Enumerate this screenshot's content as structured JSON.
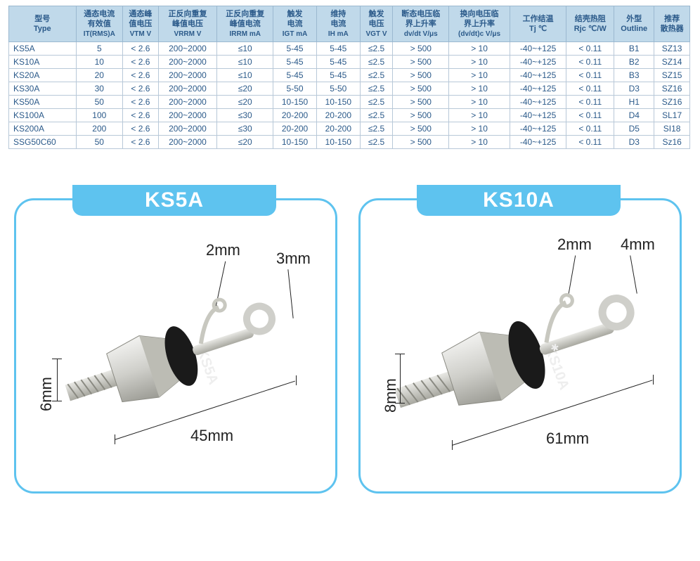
{
  "table": {
    "header_bg": "#c0d9ea",
    "header_fg": "#2b5a8a",
    "border_color": "#9bb8d0",
    "cell_fg": "#2b5a8a",
    "columns": [
      {
        "cn": "型号",
        "en": "Type",
        "sub": ""
      },
      {
        "cn": "通态电流",
        "en": "有效值",
        "sub": "IT(RMS)A"
      },
      {
        "cn": "通态峰",
        "en": "值电压",
        "sub": "VTM V"
      },
      {
        "cn": "正反向重复",
        "en": "峰值电压",
        "sub": "VRRM V"
      },
      {
        "cn": "正反向重复",
        "en": "峰值电流",
        "sub": "IRRM mA"
      },
      {
        "cn": "触发",
        "en": "电流",
        "sub": "IGT mA"
      },
      {
        "cn": "维持",
        "en": "电流",
        "sub": "IH mA"
      },
      {
        "cn": "触发",
        "en": "电压",
        "sub": "VGT V"
      },
      {
        "cn": "断态电压临",
        "en": "界上升率",
        "sub": "dv/dt V/μs"
      },
      {
        "cn": "换向电压临",
        "en": "界上升率",
        "sub": "(dv/dt)c V/μs"
      },
      {
        "cn": "工作结温",
        "en": "Tj ℃",
        "sub": ""
      },
      {
        "cn": "结壳热阻",
        "en": "Rjc ℃/W",
        "sub": ""
      },
      {
        "cn": "外型",
        "en": "Outline",
        "sub": ""
      },
      {
        "cn": "推荐",
        "en": "散热器",
        "sub": ""
      }
    ],
    "rows": [
      [
        "KS5A",
        "5",
        "< 2.6",
        "200~2000",
        "≤10",
        "5-45",
        "5-45",
        "≤2.5",
        "> 500",
        "> 10",
        "-40~+125",
        "< 0.11",
        "B1",
        "SZ13"
      ],
      [
        "KS10A",
        "10",
        "< 2.6",
        "200~2000",
        "≤10",
        "5-45",
        "5-45",
        "≤2.5",
        "> 500",
        "> 10",
        "-40~+125",
        "< 0.11",
        "B2",
        "SZ14"
      ],
      [
        "KS20A",
        "20",
        "< 2.6",
        "200~2000",
        "≤10",
        "5-45",
        "5-45",
        "≤2.5",
        "> 500",
        "> 10",
        "-40~+125",
        "< 0.11",
        "B3",
        "SZ15"
      ],
      [
        "KS30A",
        "30",
        "< 2.6",
        "200~2000",
        "≤20",
        "5-50",
        "5-50",
        "≤2.5",
        "> 500",
        "> 10",
        "-40~+125",
        "< 0.11",
        "D3",
        "SZ16"
      ],
      [
        "KS50A",
        "50",
        "< 2.6",
        "200~2000",
        "≤20",
        "10-150",
        "10-150",
        "≤2.5",
        "> 500",
        "> 10",
        "-40~+125",
        "< 0.11",
        "H1",
        "SZ16"
      ],
      [
        "KS100A",
        "100",
        "< 2.6",
        "200~2000",
        "≤30",
        "20-200",
        "20-200",
        "≤2.5",
        "> 500",
        "> 10",
        "-40~+125",
        "< 0.11",
        "D4",
        "SL17"
      ],
      [
        "KS200A",
        "200",
        "< 2.6",
        "200~2000",
        "≤30",
        "20-200",
        "20-200",
        "≤2.5",
        "> 500",
        "> 10",
        "-40~+125",
        "< 0.11",
        "D5",
        "SI18"
      ],
      [
        "SSG50C60",
        "50",
        "< 2.6",
        "200~2000",
        "≤20",
        "10-150",
        "10-150",
        "≤2.5",
        "> 500",
        "> 10",
        "-40~+125",
        "< 0.11",
        "D3",
        "Sz16"
      ]
    ]
  },
  "cards": [
    {
      "title": "KS5A",
      "part_label": "KS5A",
      "length": "45mm",
      "screw": "6mm",
      "lead_small": "2mm",
      "lead_big": "3mm",
      "accent": "#5ec3ef"
    },
    {
      "title": "KS10A",
      "part_label": "KS10A",
      "length": "61mm",
      "screw": "8mm",
      "lead_small": "2mm",
      "lead_big": "4mm",
      "accent": "#5ec3ef"
    }
  ]
}
